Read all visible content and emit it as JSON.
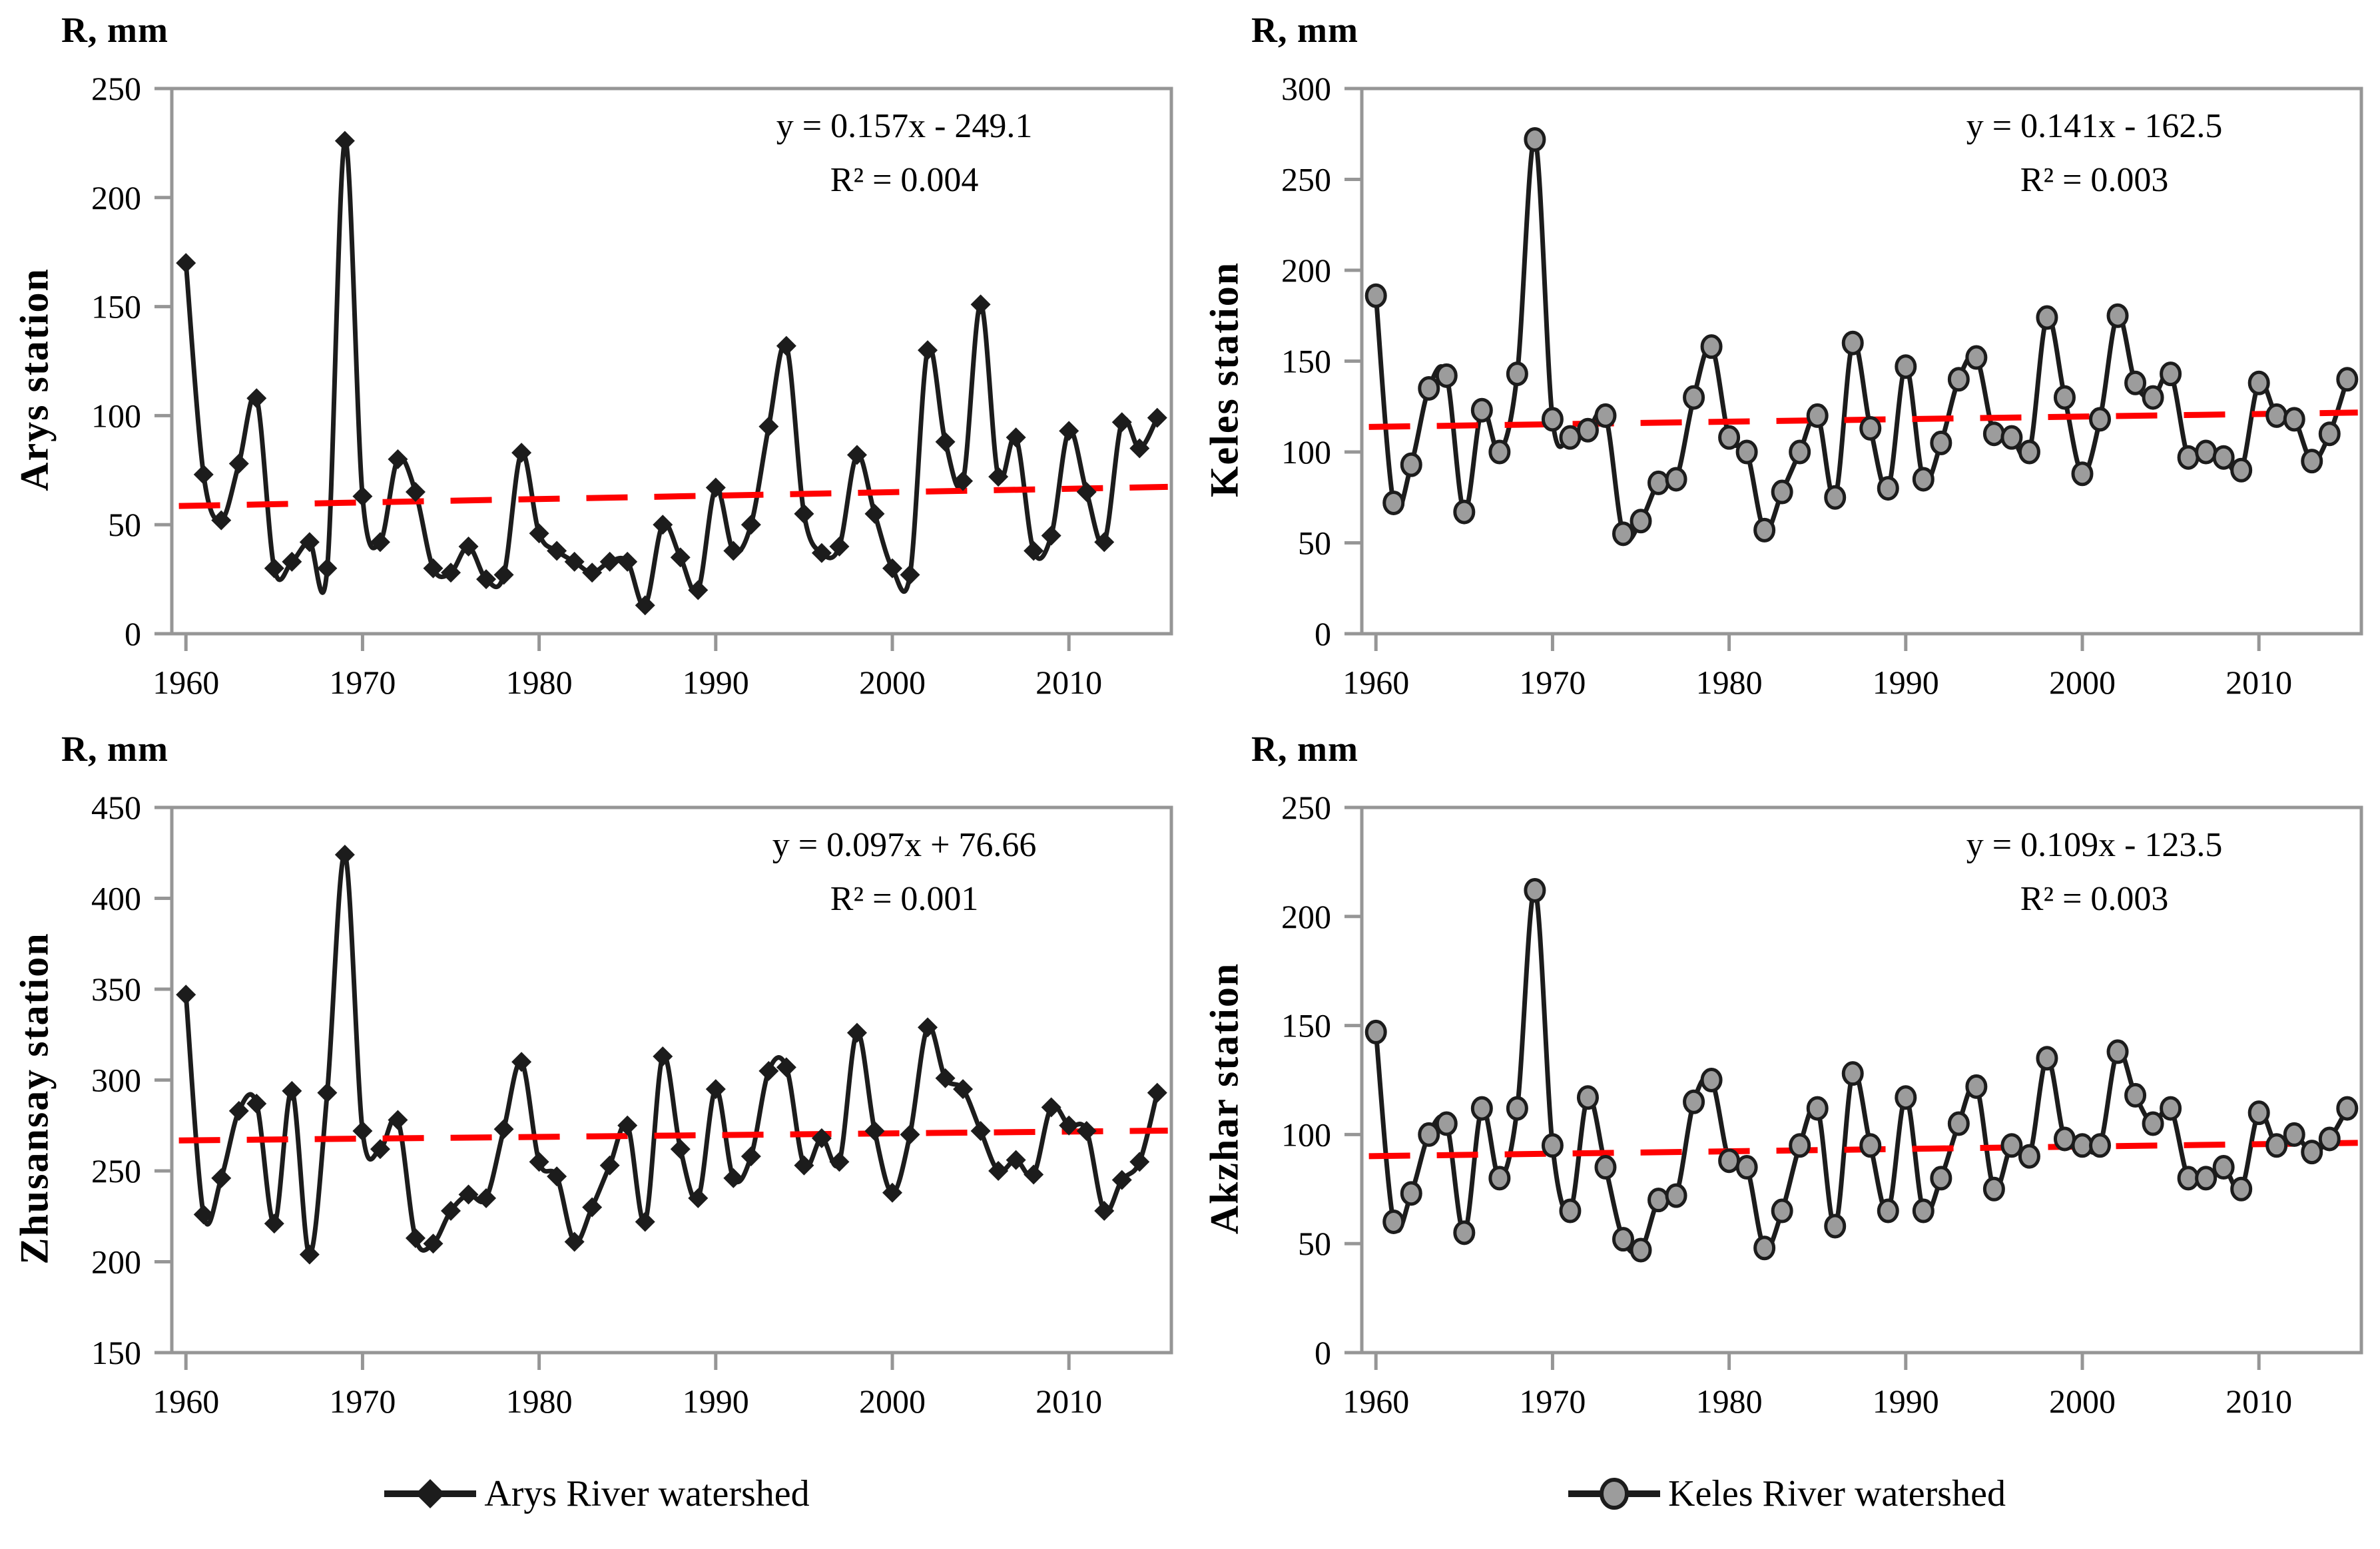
{
  "colors": {
    "trend": "#ff0000",
    "line": "#1c1c1c",
    "axis": "#969696",
    "marker_fill": "#9c9c9c",
    "text": "#000000",
    "background": "#ffffff"
  },
  "legend": [
    {
      "label": "Arys River watershed",
      "marker": "diamond"
    },
    {
      "label": "Keles River watershed",
      "marker": "circle"
    }
  ],
  "chart_data": [
    {
      "type": "line",
      "station": "Arys station",
      "y_unit_label": "R, mm",
      "equation": "y = 0.157x - 249.1",
      "r2": "R² = 0.004",
      "marker": "diamond",
      "legend_ref": "Arys River watershed",
      "ylim": [
        0,
        250
      ],
      "yticks": [
        0,
        50,
        100,
        150,
        200,
        250
      ],
      "xlim": [
        1959.2,
        2015.8
      ],
      "xticks": [
        1960,
        1970,
        1980,
        1990,
        2000,
        2010
      ],
      "trend": {
        "slope": 0.157,
        "intercept": -249.1
      },
      "grid": false,
      "years_start": 1960,
      "values": [
        170,
        73,
        52,
        78,
        108,
        30,
        33,
        42,
        30,
        226,
        63,
        42,
        80,
        65,
        30,
        28,
        40,
        25,
        27,
        83,
        46,
        38,
        33,
        28,
        33,
        33,
        13,
        50,
        35,
        20,
        67,
        38,
        50,
        95,
        132,
        55,
        37,
        40,
        82,
        55,
        30,
        27,
        130,
        88,
        70,
        151,
        72,
        90,
        38,
        45,
        93,
        65,
        42,
        97,
        85,
        99
      ]
    },
    {
      "type": "line",
      "station": "Keles station",
      "y_unit_label": "R, mm",
      "equation": "y = 0.141x - 162.5",
      "r2": "R² = 0.003",
      "marker": "circle",
      "legend_ref": "Keles River watershed",
      "ylim": [
        0,
        300
      ],
      "yticks": [
        0,
        50,
        100,
        150,
        200,
        250,
        300
      ],
      "xlim": [
        1959.2,
        2015.8
      ],
      "xticks": [
        1960,
        1970,
        1980,
        1990,
        2000,
        2010
      ],
      "trend": {
        "slope": 0.141,
        "intercept": -162.5
      },
      "grid": false,
      "years_start": 1960,
      "values": [
        186,
        72,
        93,
        135,
        142,
        67,
        123,
        100,
        143,
        272,
        118,
        108,
        112,
        120,
        55,
        62,
        83,
        85,
        130,
        158,
        108,
        100,
        57,
        78,
        100,
        120,
        75,
        160,
        113,
        80,
        147,
        85,
        105,
        140,
        152,
        110,
        108,
        100,
        174,
        130,
        88,
        118,
        175,
        138,
        130,
        143,
        97,
        100,
        97,
        90,
        138,
        120,
        118,
        95,
        110,
        140
      ]
    },
    {
      "type": "line",
      "station": "Zhusansay station",
      "y_unit_label": "R, mm",
      "equation": "y = 0.097x + 76.66",
      "r2": "R² = 0.001",
      "marker": "diamond",
      "legend_ref": "Arys River watershed",
      "ylim": [
        150,
        450
      ],
      "yticks": [
        150,
        200,
        250,
        300,
        350,
        400,
        450
      ],
      "xlim": [
        1959.2,
        2015.8
      ],
      "xticks": [
        1960,
        1970,
        1980,
        1990,
        2000,
        2010
      ],
      "trend": {
        "slope": 0.097,
        "intercept": 76.66
      },
      "grid": false,
      "years_start": 1960,
      "values": [
        347,
        226,
        246,
        283,
        287,
        221,
        294,
        204,
        293,
        424,
        272,
        262,
        278,
        213,
        210,
        228,
        237,
        235,
        273,
        310,
        255,
        247,
        211,
        230,
        253,
        275,
        222,
        313,
        262,
        235,
        295,
        246,
        258,
        305,
        307,
        253,
        268,
        255,
        326,
        272,
        238,
        270,
        329,
        301,
        295,
        272,
        250,
        256,
        248,
        285,
        275,
        272,
        228,
        245,
        255,
        293
      ]
    },
    {
      "type": "line",
      "station": "Akzhar station",
      "y_unit_label": "R, mm",
      "equation": "y = 0.109x - 123.5",
      "r2": "R² = 0.003",
      "marker": "circle",
      "legend_ref": "Keles River watershed",
      "ylim": [
        0,
        250
      ],
      "yticks": [
        0,
        50,
        100,
        150,
        200,
        250
      ],
      "xlim": [
        1959.2,
        2015.8
      ],
      "xticks": [
        1960,
        1970,
        1980,
        1990,
        2000,
        2010
      ],
      "trend": {
        "slope": 0.109,
        "intercept": -123.5
      },
      "grid": false,
      "years_start": 1960,
      "values": [
        147,
        60,
        73,
        100,
        105,
        55,
        112,
        80,
        112,
        212,
        95,
        65,
        117,
        85,
        52,
        47,
        70,
        72,
        115,
        125,
        88,
        85,
        48,
        65,
        95,
        112,
        58,
        128,
        95,
        65,
        117,
        65,
        80,
        105,
        122,
        75,
        95,
        90,
        135,
        98,
        95,
        95,
        138,
        118,
        105,
        112,
        80,
        80,
        85,
        75,
        110,
        95,
        100,
        92,
        98,
        112
      ]
    }
  ]
}
